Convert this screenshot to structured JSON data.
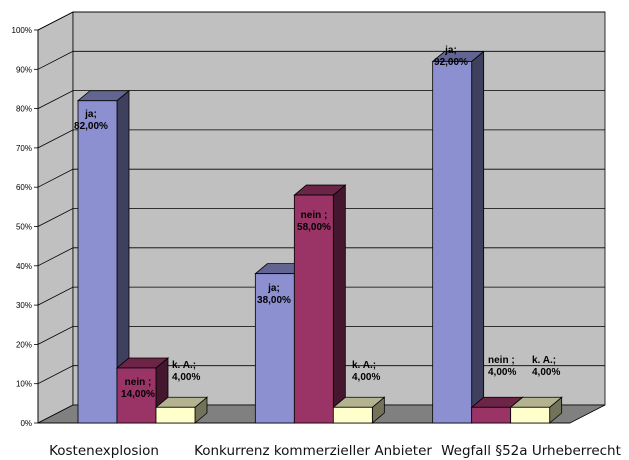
{
  "chart_data": {
    "type": "bar",
    "categories": [
      "Kostenexplosion",
      "Konkurrenz kommerzieller Anbieter",
      "Wegfall §52a Urheberrecht"
    ],
    "series": [
      {
        "values": [
          82,
          38,
          92
        ],
        "labels": [
          "ja;\n82,00%",
          "ja;\n38,00%",
          "ja;\n92,00%"
        ],
        "color": "#8c8fd0"
      },
      {
        "values": [
          14,
          58,
          4
        ],
        "labels": [
          "nein ;\n14,00%",
          "nein ;\n58,00%",
          "nein ;\n4,00%"
        ],
        "color": "#9a3466"
      },
      {
        "values": [
          4,
          4,
          4
        ],
        "labels": [
          "k. A.;\n4,00%",
          "k. A.;\n4,00%",
          "k. A.;\n4,00%"
        ],
        "color": "#ffffcc"
      }
    ],
    "ylim": [
      0,
      100
    ],
    "yticks": [
      "0%",
      "10%",
      "20%",
      "30%",
      "40%",
      "50%",
      "60%",
      "70%",
      "80%",
      "90%",
      "100%"
    ],
    "grid": true,
    "three_d": true,
    "wall_color": "#c0c0c0",
    "floor_color": "#808080"
  }
}
